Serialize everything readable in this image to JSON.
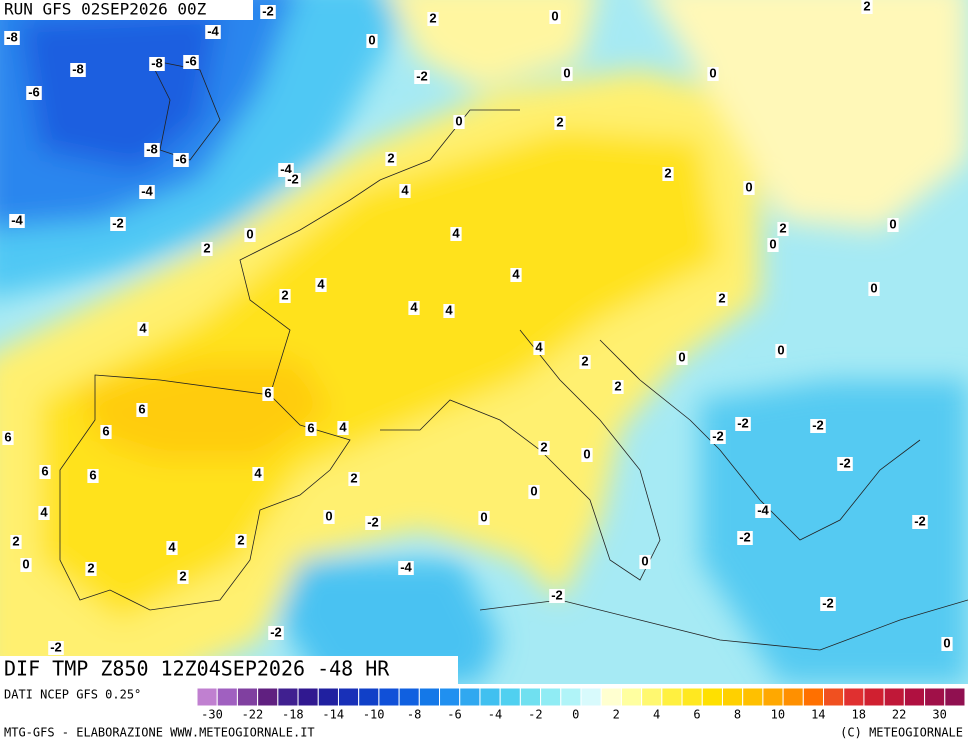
{
  "header": {
    "run": "RUN GFS 02SEP2026 00Z"
  },
  "map": {
    "title": "DIF TMP Z850 12Z04SEP2026 -48 HR",
    "contour_labels": [
      -2,
      2,
      0,
      2,
      -8,
      -4,
      0,
      -8,
      -8,
      -6,
      -2,
      0,
      0,
      -6,
      0,
      2,
      -8,
      -6,
      -4,
      -2,
      2,
      2,
      -4,
      4,
      0,
      -4,
      -2,
      0,
      4,
      2,
      0,
      2,
      0,
      4,
      4,
      2,
      0,
      4,
      4,
      2,
      4,
      4,
      0,
      0,
      2,
      6,
      2,
      6,
      6,
      6,
      4,
      -2,
      -2,
      -2,
      6,
      2,
      0,
      -2,
      6,
      6,
      4,
      2,
      0,
      4,
      -4,
      0,
      -2,
      0,
      -2,
      2,
      2,
      4,
      -2,
      0,
      2,
      2,
      -4,
      0,
      -2,
      -2,
      -2,
      -2,
      0
    ]
  },
  "legend": {
    "source": "DATI NCEP GFS 0.25°",
    "colors": [
      "#c080d0",
      "#a060c0",
      "#8040a0",
      "#602080",
      "#402090",
      "#301890",
      "#2020a0",
      "#1830b8",
      "#1040c8",
      "#1050d8",
      "#1060e0",
      "#1478e8",
      "#2090f0",
      "#30a8f0",
      "#40c0f0",
      "#50d0f0",
      "#70e0f0",
      "#90ecf4",
      "#b0f4f8",
      "#d8fafc",
      "#ffffd0",
      "#ffffa0",
      "#fff870",
      "#fff040",
      "#ffe820",
      "#ffe000",
      "#ffd000",
      "#ffc000",
      "#ffa800",
      "#ff9000",
      "#ff7000",
      "#f05020",
      "#e03030",
      "#d02030",
      "#c01838",
      "#b01040",
      "#a01048",
      "#901050"
    ],
    "ticks": [
      -30,
      -22,
      -18,
      -14,
      -10,
      -8,
      -6,
      -4,
      -2,
      0,
      2,
      4,
      6,
      8,
      10,
      14,
      18,
      22,
      30
    ]
  },
  "footer": {
    "credit": "MTG-GFS - ELABORAZIONE WWW.METEOGIORNALE.IT",
    "copyright": "(C) METEOGIORNALE"
  }
}
